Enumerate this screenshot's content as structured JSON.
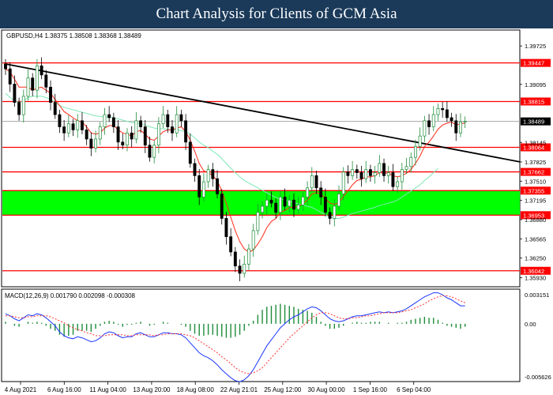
{
  "header": {
    "title": "Chart Analysis for Clients of GCM Asia"
  },
  "chart_data": {
    "type": "candlestick",
    "symbol_info": "GBPUSD,H4  1.38375 1.38508 1.38368 1.38489",
    "x_ticks": [
      "4 Aug 2021",
      "6 Aug 16:00",
      "11 Aug 04:00",
      "13 Aug 20:00",
      "18 Aug 08:00",
      "22 Aug 21:01",
      "25 Aug 12:00",
      "30 Aug 00:00",
      "1 Sep 16:00",
      "6 Sep 04:00"
    ],
    "y_ticks": [
      "1.39725",
      "1.39095",
      "1.38145",
      "1.37825",
      "1.37510",
      "1.37195",
      "1.36880",
      "1.36565",
      "1.36250",
      "1.35930"
    ],
    "y_range": [
      1.3578,
      1.3996
    ],
    "current_price": {
      "label": "1.38489",
      "value": 1.38489
    },
    "levels": [
      {
        "label": "1.39447",
        "value": 1.39447
      },
      {
        "label": "1.38815",
        "value": 1.38815
      },
      {
        "label": "1.38064",
        "value": 1.38064
      },
      {
        "label": "1.37662",
        "value": 1.37662
      },
      {
        "label": "1.37355",
        "value": 1.37355
      },
      {
        "label": "1.36953",
        "value": 1.36953
      },
      {
        "label": "1.36042",
        "value": 1.36042
      }
    ],
    "zone": {
      "from": 1.36953,
      "to": 1.37355,
      "color": "#00ff00"
    },
    "trendline": {
      "from": [
        0,
        1.3943
      ],
      "to": [
        126,
        1.3766
      ],
      "color": "#000000"
    },
    "colors": {
      "up": "#1e8c3a",
      "down": "#000000",
      "level": "#ff0000",
      "ma_fast": "#ff2a1a",
      "ma_slow": "#7fe8b5",
      "macd": "#1a36ff",
      "signal": "#ff3030",
      "histogram": "#1e8c3a"
    },
    "closes": [
      1.3935,
      1.391,
      1.388,
      1.386,
      1.389,
      1.392,
      1.39,
      1.394,
      1.3925,
      1.3905,
      1.388,
      1.386,
      1.384,
      1.383,
      1.3845,
      1.3835,
      1.385,
      1.3835,
      1.382,
      1.3805,
      1.382,
      1.384,
      1.386,
      1.3855,
      1.384,
      1.3815,
      1.381,
      1.383,
      1.382,
      1.385,
      1.384,
      1.381,
      1.379,
      1.381,
      1.3845,
      1.386,
      1.384,
      1.383,
      1.386,
      1.385,
      1.3815,
      1.378,
      1.376,
      1.3725,
      1.375,
      1.377,
      1.3755,
      1.373,
      1.369,
      1.366,
      1.3635,
      1.3612,
      1.36,
      1.3615,
      1.364,
      1.367,
      1.37,
      1.371,
      1.372,
      1.3715,
      1.37,
      1.3725,
      1.371,
      1.372,
      1.3705,
      1.3712,
      1.3725,
      1.374,
      1.376,
      1.374,
      1.3725,
      1.37,
      1.369,
      1.371,
      1.373,
      1.3766,
      1.376,
      1.377,
      1.3765,
      1.3755,
      1.377,
      1.376,
      1.3765,
      1.378,
      1.376,
      1.3765,
      1.3742,
      1.375,
      1.377,
      1.3775,
      1.379,
      1.3808,
      1.3825,
      1.385,
      1.384,
      1.386,
      1.387,
      1.3868,
      1.3855,
      1.385,
      1.383,
      1.3848,
      1.3849
    ],
    "ma_fast": [
      1.3935,
      1.393,
      1.3918,
      1.3905,
      1.3905,
      1.3905,
      1.39,
      1.3903,
      1.3905,
      1.39,
      1.3895,
      1.3885,
      1.3875,
      1.3865,
      1.386,
      1.3855,
      1.385,
      1.3848,
      1.384,
      1.383,
      1.3828,
      1.383,
      1.3838,
      1.3842,
      1.3842,
      1.3835,
      1.383,
      1.3828,
      1.3825,
      1.3832,
      1.3834,
      1.3828,
      1.382,
      1.3818,
      1.3825,
      1.3832,
      1.3835,
      1.3835,
      1.3838,
      1.384,
      1.3832,
      1.3818,
      1.38,
      1.378,
      1.3768,
      1.3765,
      1.376,
      1.3752,
      1.3735,
      1.3715,
      1.3692,
      1.367,
      1.3652,
      1.364,
      1.3635,
      1.3638,
      1.3648,
      1.366,
      1.3675,
      1.3685,
      1.369,
      1.37,
      1.3703,
      1.3708,
      1.3708,
      1.371,
      1.3714,
      1.372,
      1.373,
      1.3732,
      1.373,
      1.3722,
      1.3715,
      1.3713,
      1.3716,
      1.3726,
      1.3735,
      1.3745,
      1.3752,
      1.3754,
      1.3758,
      1.3758,
      1.376,
      1.3765,
      1.3764,
      1.3764,
      1.376,
      1.3758,
      1.376,
      1.3764,
      1.377,
      1.378,
      1.3792,
      1.3808,
      1.3815,
      1.3825,
      1.3836,
      1.3843,
      1.3846,
      1.3848,
      1.3843,
      1.3845,
      1.3846
    ],
    "ma_slow": [
      1.3895,
      1.3888,
      1.3883,
      1.388,
      1.3882,
      1.3888,
      1.389,
      1.389,
      1.389,
      1.3888,
      1.3885,
      1.388,
      1.3875,
      1.3872,
      1.387,
      1.3868,
      1.3866,
      1.3864,
      1.3862,
      1.386,
      1.3858,
      1.3857,
      1.3856,
      1.3856,
      1.3855,
      1.3853,
      1.3851,
      1.3849,
      1.3847,
      1.3846,
      1.3845,
      1.3843,
      1.384,
      1.3838,
      1.3837,
      1.3837,
      1.3836,
      1.3835,
      1.3835,
      1.3834,
      1.3832,
      1.3828,
      1.3822,
      1.3815,
      1.381,
      1.3806,
      1.38,
      1.3795,
      1.3788,
      1.378,
      1.3772,
      1.3765,
      1.3758,
      1.3752,
      1.3748,
      1.3744,
      1.374,
      1.3736,
      1.3732,
      1.3728,
      1.3724,
      1.3722,
      1.372,
      1.3718,
      1.3716,
      1.3714,
      1.3712,
      1.371,
      1.3708,
      1.3704,
      1.37,
      1.3696,
      1.3692,
      1.369,
      1.369,
      1.3692,
      1.3695,
      1.3698,
      1.37,
      1.3702,
      1.3704,
      1.3706,
      1.3708,
      1.3711,
      1.3713,
      1.3715,
      1.3717,
      1.372,
      1.3725,
      1.373,
      1.3735,
      1.374,
      1.3745,
      1.3752,
      1.3758,
      1.3765,
      1.3772
    ],
    "macd": {
      "label": "MACD(12,26,9)  0.001790  0.002098  -0.000308",
      "y_ticks": [
        "0.003151",
        "0.00",
        "-0.005626"
      ],
      "y_range": [
        -0.005626,
        0.003151
      ],
      "macd_line": [
        0.001,
        0.0008,
        0.0005,
        0.0003,
        0.0006,
        0.0009,
        0.0008,
        0.001,
        0.0009,
        0.0006,
        0.0002,
        -0.0002,
        -0.0008,
        -0.0012,
        -0.0014,
        -0.0015,
        -0.0013,
        -0.0014,
        -0.0016,
        -0.0018,
        -0.0017,
        -0.0014,
        -0.001,
        -0.0008,
        -0.0009,
        -0.0012,
        -0.0014,
        -0.0013,
        -0.0013,
        -0.001,
        -0.0009,
        -0.0011,
        -0.0013,
        -0.0013,
        -0.0011,
        -0.0009,
        -0.0009,
        -0.001,
        -0.001,
        -0.0011,
        -0.0014,
        -0.0019,
        -0.0024,
        -0.0029,
        -0.0032,
        -0.0034,
        -0.0037,
        -0.0041,
        -0.0046,
        -0.005,
        -0.0054,
        -0.0057,
        -0.0058,
        -0.0056,
        -0.0052,
        -0.0046,
        -0.0038,
        -0.003,
        -0.0022,
        -0.0016,
        -0.001,
        -0.0004,
        0.0,
        0.0004,
        0.0007,
        0.0009,
        0.0012,
        0.0015,
        0.0017,
        0.0016,
        0.0013,
        0.0009,
        0.0005,
        0.0003,
        0.0002,
        0.0003,
        0.0005,
        0.0007,
        0.0008,
        0.0008,
        0.0009,
        0.001,
        0.0011,
        0.0012,
        0.0011,
        0.0012,
        0.0011,
        0.0012,
        0.0013,
        0.0015,
        0.0018,
        0.0021,
        0.0024,
        0.0027,
        0.0029,
        0.0031,
        0.0031,
        0.0029,
        0.0026,
        0.0024,
        0.0021,
        0.0018,
        0.0018
      ],
      "signal_line": [
        0.0008,
        0.0008,
        0.0007,
        0.0006,
        0.0006,
        0.0007,
        0.0007,
        0.0008,
        0.0008,
        0.0008,
        0.0007,
        0.0005,
        0.0003,
        0.0001,
        -0.0002,
        -0.0004,
        -0.0006,
        -0.0007,
        -0.0009,
        -0.001,
        -0.0012,
        -0.0012,
        -0.0012,
        -0.0011,
        -0.0011,
        -0.0011,
        -0.0011,
        -0.0012,
        -0.0012,
        -0.0011,
        -0.0011,
        -0.0011,
        -0.0011,
        -0.0012,
        -0.0011,
        -0.0011,
        -0.001,
        -0.001,
        -0.001,
        -0.001,
        -0.0011,
        -0.0012,
        -0.0014,
        -0.0017,
        -0.002,
        -0.0023,
        -0.0026,
        -0.0029,
        -0.0033,
        -0.0036,
        -0.004,
        -0.0044,
        -0.0047,
        -0.0049,
        -0.005,
        -0.0049,
        -0.0047,
        -0.0044,
        -0.0039,
        -0.0034,
        -0.0029,
        -0.0024,
        -0.0019,
        -0.0014,
        -0.001,
        -0.0006,
        -0.0002,
        0.0002,
        0.0006,
        0.0009,
        0.0011,
        0.0011,
        0.001,
        0.0008,
        0.0006,
        0.0005,
        0.0005,
        0.0006,
        0.0006,
        0.0007,
        0.0008,
        0.0008,
        0.0009,
        0.001,
        0.0011,
        0.0011,
        0.0011,
        0.0011,
        0.0012,
        0.0013,
        0.0014,
        0.0016,
        0.0018,
        0.002,
        0.0023,
        0.0025,
        0.0027,
        0.0028,
        0.0028,
        0.0027,
        0.0025,
        0.0023,
        0.0021
      ],
      "histogram": [
        0.0002,
        0.0,
        -0.0002,
        -0.0003,
        0.0,
        0.0002,
        0.0001,
        0.0002,
        0.0001,
        -0.0002,
        -0.0005,
        -0.0007,
        -0.0011,
        -0.0013,
        -0.0012,
        -0.0011,
        -0.0007,
        -0.0007,
        -0.0007,
        -0.0008,
        -0.0005,
        -0.0002,
        0.0002,
        0.0003,
        0.0002,
        -0.0001,
        -0.0003,
        -0.0001,
        -0.0001,
        0.0001,
        0.0002,
        0.0,
        -0.0002,
        -0.0001,
        0.0,
        0.0002,
        0.0001,
        0.0,
        0.0,
        -0.0001,
        -0.0003,
        -0.0007,
        -0.001,
        -0.0012,
        -0.0012,
        -0.0011,
        -0.0011,
        -0.0012,
        -0.0013,
        -0.0014,
        -0.0014,
        -0.0013,
        -0.0011,
        -0.0007,
        -0.0002,
        0.0003,
        0.0009,
        0.0014,
        0.0017,
        0.0018,
        0.0019,
        0.002,
        0.0019,
        0.0018,
        0.0017,
        0.0015,
        0.0014,
        0.0013,
        0.0011,
        0.0007,
        0.0002,
        -0.0002,
        -0.0005,
        -0.0005,
        -0.0004,
        -0.0002,
        0.0,
        0.0001,
        0.0002,
        0.0001,
        0.0001,
        0.0002,
        0.0002,
        0.0002,
        0.0,
        0.0001,
        0.0,
        0.0001,
        0.0001,
        0.0002,
        0.0004,
        0.0005,
        0.0006,
        0.0007,
        0.0006,
        0.0006,
        0.0004,
        0.0001,
        -0.0002,
        -0.0003,
        -0.0004,
        -0.0005,
        -0.0003
      ]
    }
  }
}
